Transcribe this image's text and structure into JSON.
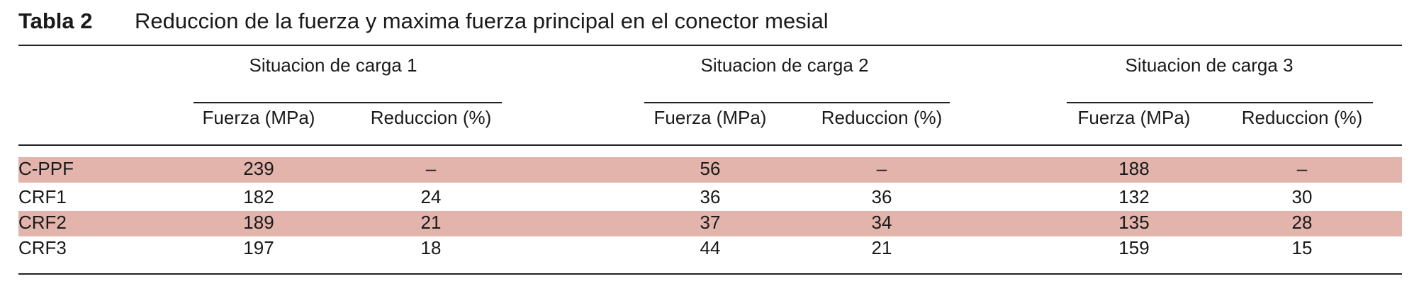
{
  "title": {
    "label": "Tabla 2",
    "text": "Reduccion de la fuerza y maxima fuerza principal en el conector mesial"
  },
  "table": {
    "groups": [
      {
        "name": "Situacion de carga 1",
        "columns": [
          "Fuerza  (MPa)",
          "Reduccion (%)"
        ]
      },
      {
        "name": "Situacion de carga 2",
        "columns": [
          "Fuerza  (MPa)",
          "Reduccion (%)"
        ]
      },
      {
        "name": "Situacion de carga 3",
        "columns": [
          "Fuerza  (MPa)",
          "Reduccion (%)"
        ]
      }
    ],
    "rows": [
      {
        "label": "C-PPF",
        "cells": [
          239,
          "–",
          56,
          "–",
          188,
          "–"
        ]
      },
      {
        "label": "CRF1",
        "cells": [
          182,
          24,
          36,
          36,
          132,
          30
        ]
      },
      {
        "label": "CRF2",
        "cells": [
          189,
          21,
          37,
          34,
          135,
          28
        ]
      },
      {
        "label": "CRF3",
        "cells": [
          197,
          18,
          44,
          21,
          159,
          15
        ]
      }
    ]
  }
}
